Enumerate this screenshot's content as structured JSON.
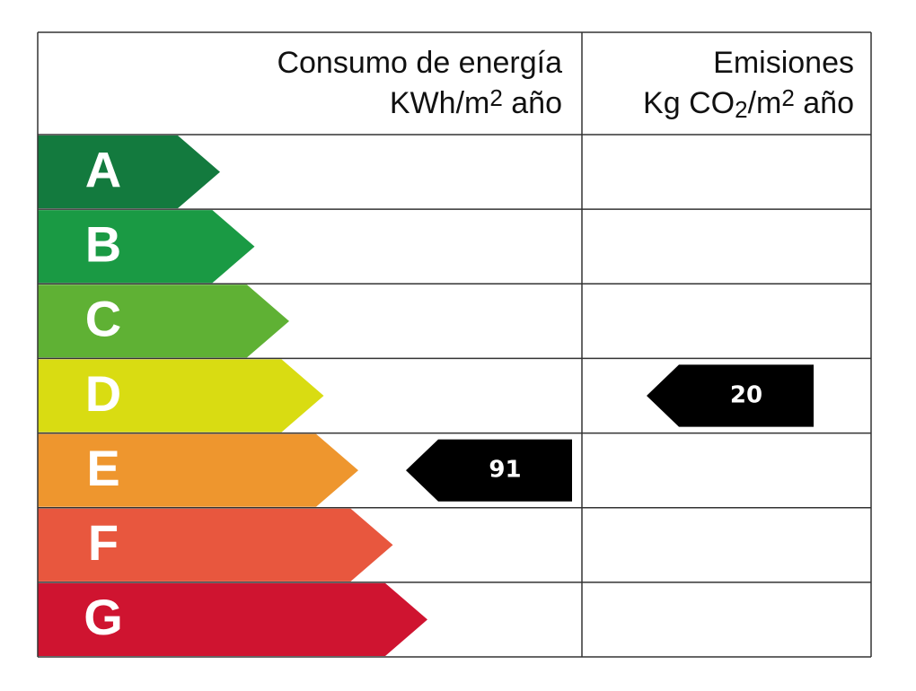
{
  "header": {
    "consumption": {
      "title": "Consumo de energía",
      "unit": [
        "KWh/m",
        "2",
        " año"
      ]
    },
    "emissions": {
      "title": "Emisiones",
      "unit": [
        "Kg CO",
        "2",
        "/m",
        "2",
        " año"
      ]
    }
  },
  "classes": [
    {
      "label": "A",
      "color": "#137a3e"
    },
    {
      "label": "B",
      "color": "#1a9a44"
    },
    {
      "label": "C",
      "color": "#5fb134"
    },
    {
      "label": "D",
      "color": "#d9dc12"
    },
    {
      "label": "E",
      "color": "#ee962e"
    },
    {
      "label": "F",
      "color": "#e8573e"
    },
    {
      "label": "G",
      "color": "#cf1430"
    }
  ],
  "consumption": {
    "class": "E",
    "value": "91"
  },
  "emissions": {
    "class": "D",
    "value": "20"
  }
}
